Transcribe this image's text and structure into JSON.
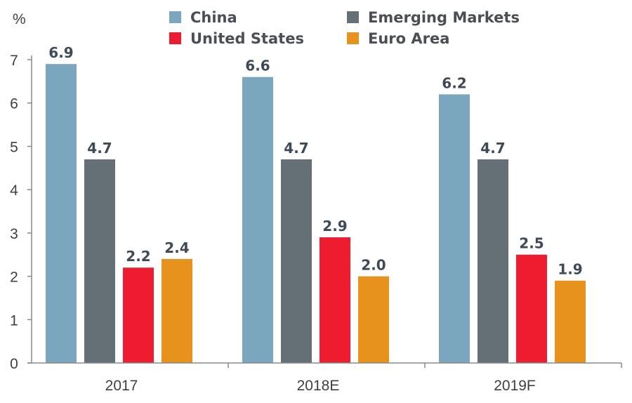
{
  "chart_data": {
    "type": "bar",
    "ylabel": "%",
    "ylim": [
      0,
      7
    ],
    "yticks": [
      "0",
      "1",
      "2",
      "3",
      "4",
      "5",
      "6",
      "7"
    ],
    "categories": [
      "2017",
      "2018E",
      "2019F"
    ],
    "series": [
      {
        "name": "China",
        "color": "#7ba7be",
        "values": [
          6.9,
          6.6,
          6.2
        ],
        "labels": [
          "6.9",
          "6.6",
          "6.2"
        ]
      },
      {
        "name": "Emerging Markets",
        "color": "#646f76",
        "values": [
          4.7,
          4.7,
          4.7
        ],
        "labels": [
          "4.7",
          "4.7",
          "4.7"
        ]
      },
      {
        "name": "United States",
        "color": "#ed1c2e",
        "values": [
          2.2,
          2.9,
          2.5
        ],
        "labels": [
          "2.2",
          "2.9",
          "2.5"
        ]
      },
      {
        "name": "Euro Area",
        "color": "#e8921e",
        "values": [
          2.4,
          2.0,
          1.9
        ],
        "labels": [
          "2.4",
          "2.0",
          "1.9"
        ]
      }
    ],
    "legend": "top",
    "grid": false
  }
}
